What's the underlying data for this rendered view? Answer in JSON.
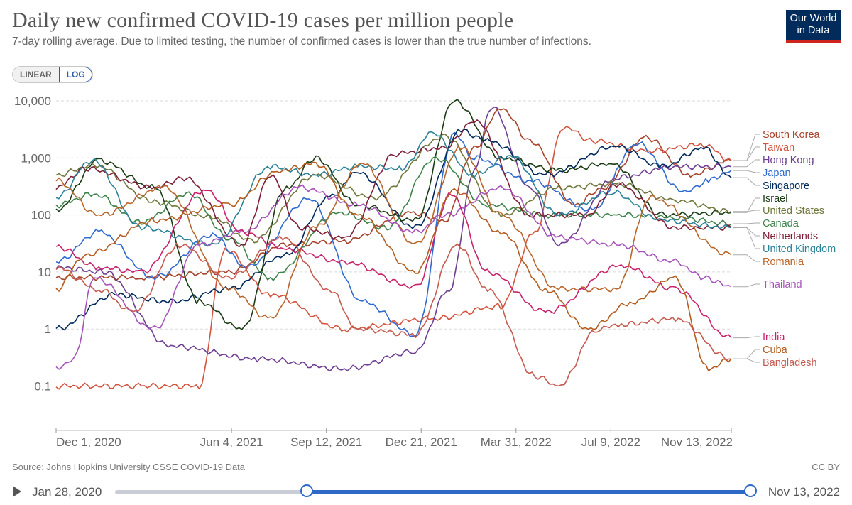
{
  "header": {
    "title": "Daily new confirmed COVID-19 cases per million people",
    "subtitle": "7-day rolling average. Due to limited testing, the number of confirmed cases is lower than the true number of infections.",
    "logo_line1": "Our World",
    "logo_line2": "in Data"
  },
  "scale_toggle": {
    "linear_label": "LINEAR",
    "log_label": "LOG",
    "selected": "LOG"
  },
  "footer": {
    "source": "Source: Johns Hopkins University CSSE COVID-19 Data",
    "license": "CC BY"
  },
  "timeline": {
    "start_label": "Jan 28, 2020",
    "end_label": "Nov 13, 2022",
    "range_start": "Dec 1, 2020",
    "range_end": "Nov 13, 2022"
  },
  "chart_data": {
    "type": "line",
    "title": "Daily new confirmed COVID-19 cases per million people",
    "y_scale": "log",
    "ylim": [
      0.02,
      10000
    ],
    "y_ticks": [
      0.1,
      1,
      10,
      100,
      1000,
      10000
    ],
    "y_tick_labels": [
      "0.1",
      "1",
      "10",
      "100",
      "1,000",
      "10,000"
    ],
    "x_range": [
      "2020-12-01",
      "2022-11-13"
    ],
    "x_ticks": [
      "2020-12-01",
      "2021-06-04",
      "2021-09-12",
      "2021-12-21",
      "2022-03-31",
      "2022-07-09",
      "2022-11-13"
    ],
    "x_tick_labels": [
      "Dec 1, 2020",
      "Jun 4, 2021",
      "Sep 12, 2021",
      "Dec 21, 2021",
      "Mar 31, 2022",
      "Jul 9, 2022",
      "Nov 13, 2022"
    ],
    "grid": true,
    "legend_position": "right",
    "series": [
      {
        "name": "South Korea",
        "color": "#a4422b",
        "dates": [
          "2020-12-01",
          "2021-03-01",
          "2021-06-01",
          "2021-08-01",
          "2021-10-01",
          "2021-12-10",
          "2022-01-15",
          "2022-02-15",
          "2022-03-15",
          "2022-04-15",
          "2022-06-01",
          "2022-07-01",
          "2022-08-15",
          "2022-10-01",
          "2022-11-13"
        ],
        "values": [
          8,
          8,
          10,
          30,
          35,
          110,
          80,
          1500,
          7500,
          2000,
          150,
          300,
          2300,
          500,
          900
        ]
      },
      {
        "name": "Taiwan",
        "color": "#d2543f",
        "dates": [
          "2020-12-01",
          "2021-03-01",
          "2021-05-01",
          "2021-05-28",
          "2021-07-15",
          "2021-10-01",
          "2022-01-01",
          "2022-03-15",
          "2022-04-20",
          "2022-05-20",
          "2022-06-20",
          "2022-08-15",
          "2022-10-15",
          "2022-11-13"
        ],
        "values": [
          0.1,
          0.1,
          0.1,
          25,
          4,
          1,
          1.5,
          2.5,
          50,
          3500,
          2000,
          1300,
          1700,
          900
        ]
      },
      {
        "name": "Hong Kong",
        "color": "#6d3e91",
        "dates": [
          "2020-12-01",
          "2021-01-20",
          "2021-04-01",
          "2021-07-01",
          "2021-10-01",
          "2021-12-15",
          "2022-01-20",
          "2022-02-15",
          "2022-03-05",
          "2022-04-15",
          "2022-05-15",
          "2022-07-15",
          "2022-09-15",
          "2022-11-13"
        ],
        "values": [
          12,
          10,
          0.5,
          0.3,
          0.2,
          0.4,
          5,
          600,
          8000,
          300,
          30,
          450,
          700,
          700
        ]
      },
      {
        "name": "Japan",
        "color": "#2f6ad0",
        "dates": [
          "2020-12-01",
          "2021-01-15",
          "2021-03-15",
          "2021-05-15",
          "2021-06-20",
          "2021-08-25",
          "2021-10-20",
          "2021-12-15",
          "2022-01-25",
          "2022-02-15",
          "2022-04-15",
          "2022-06-20",
          "2022-08-05",
          "2022-09-25",
          "2022-10-20",
          "2022-11-13"
        ],
        "values": [
          15,
          50,
          8,
          45,
          12,
          190,
          3,
          0.8,
          2600,
          1000,
          400,
          120,
          1800,
          250,
          400,
          600
        ]
      },
      {
        "name": "Singapore",
        "color": "#00295b",
        "dates": [
          "2020-12-01",
          "2021-02-01",
          "2021-04-01",
          "2021-06-01",
          "2021-08-01",
          "2021-09-15",
          "2021-10-15",
          "2021-12-15",
          "2022-02-01",
          "2022-03-01",
          "2022-05-01",
          "2022-07-15",
          "2022-09-01",
          "2022-10-15",
          "2022-11-13"
        ],
        "values": [
          1,
          4,
          3,
          5,
          20,
          200,
          550,
          60,
          3000,
          2000,
          500,
          1600,
          700,
          1500,
          450
        ]
      },
      {
        "name": "Israel",
        "color": "#1a3b14",
        "dates": [
          "2020-12-01",
          "2021-01-15",
          "2021-03-15",
          "2021-05-01",
          "2021-06-15",
          "2021-08-01",
          "2021-09-01",
          "2021-10-15",
          "2021-12-15",
          "2022-01-25",
          "2022-03-15",
          "2022-05-15",
          "2022-07-10",
          "2022-09-01",
          "2022-11-13"
        ],
        "values": [
          120,
          900,
          300,
          3,
          1,
          300,
          1000,
          150,
          80,
          10000,
          1000,
          600,
          800,
          100,
          110
        ]
      },
      {
        "name": "United States",
        "color": "#70773c",
        "dates": [
          "2020-12-01",
          "2021-01-10",
          "2021-03-15",
          "2021-05-15",
          "2021-06-25",
          "2021-09-01",
          "2021-11-01",
          "2022-01-15",
          "2022-03-15",
          "2022-05-15",
          "2022-07-15",
          "2022-09-15",
          "2022-11-13"
        ],
        "values": [
          500,
          750,
          170,
          90,
          35,
          500,
          200,
          2400,
          100,
          300,
          350,
          180,
          115
        ]
      },
      {
        "name": "Canada",
        "color": "#3e8149",
        "dates": [
          "2020-12-01",
          "2021-01-10",
          "2021-03-01",
          "2021-04-20",
          "2021-06-01",
          "2021-07-15",
          "2021-09-25",
          "2021-11-15",
          "2022-01-05",
          "2022-03-01",
          "2022-05-01",
          "2022-07-15",
          "2022-09-15",
          "2022-11-13"
        ],
        "values": [
          150,
          230,
          75,
          240,
          40,
          8,
          110,
          60,
          1000,
          150,
          100,
          100,
          90,
          70
        ]
      },
      {
        "name": "Netherlands",
        "color": "#7e1f38",
        "dates": [
          "2020-12-01",
          "2021-01-01",
          "2021-03-15",
          "2021-04-15",
          "2021-06-15",
          "2021-07-15",
          "2021-08-15",
          "2021-10-01",
          "2021-11-25",
          "2022-01-15",
          "2022-02-15",
          "2022-04-15",
          "2022-06-15",
          "2022-07-15",
          "2022-09-15",
          "2022-10-15",
          "2022-11-13"
        ],
        "values": [
          300,
          650,
          300,
          450,
          30,
          500,
          60,
          40,
          1200,
          1500,
          4500,
          100,
          100,
          350,
          60,
          60,
          60
        ]
      },
      {
        "name": "United Kingdom",
        "color": "#2c8299",
        "dates": [
          "2020-12-01",
          "2021-01-08",
          "2021-03-01",
          "2021-05-15",
          "2021-07-15",
          "2021-09-01",
          "2021-10-15",
          "2021-12-01",
          "2022-01-01",
          "2022-02-15",
          "2022-03-25",
          "2022-05-15",
          "2022-07-10",
          "2022-09-01",
          "2022-11-13"
        ],
        "values": [
          200,
          900,
          60,
          30,
          700,
          500,
          700,
          650,
          2700,
          500,
          1100,
          100,
          250,
          80,
          60
        ]
      },
      {
        "name": "Romania",
        "color": "#b8652c",
        "dates": [
          "2020-12-01",
          "2021-01-15",
          "2021-03-25",
          "2021-06-01",
          "2021-07-15",
          "2021-09-01",
          "2021-10-20",
          "2021-12-15",
          "2022-02-01",
          "2022-03-15",
          "2022-05-15",
          "2022-07-15",
          "2022-08-20",
          "2022-11-13"
        ],
        "values": [
          400,
          100,
          300,
          5,
          1.5,
          60,
          800,
          30,
          1500,
          100,
          5,
          5,
          200,
          20
        ]
      },
      {
        "name": "Thailand",
        "color": "#a652ba",
        "dates": [
          "2020-12-01",
          "2020-12-20",
          "2021-01-10",
          "2021-03-15",
          "2021-05-01",
          "2021-06-15",
          "2021-08-15",
          "2021-10-15",
          "2021-12-15",
          "2022-01-15",
          "2022-03-15",
          "2022-05-15",
          "2022-07-15",
          "2022-09-15",
          "2022-10-15",
          "2022-11-13"
        ],
        "values": [
          0.2,
          0.3,
          8,
          1,
          30,
          50,
          300,
          150,
          50,
          100,
          300,
          40,
          30,
          15,
          8,
          5.5
        ]
      },
      {
        "name": "India",
        "color": "#c7226b",
        "dates": [
          "2020-12-01",
          "2021-01-15",
          "2021-03-01",
          "2021-05-08",
          "2021-06-15",
          "2021-08-01",
          "2021-10-01",
          "2021-12-15",
          "2022-01-22",
          "2022-03-01",
          "2022-05-01",
          "2022-07-20",
          "2022-09-15",
          "2022-11-13"
        ],
        "values": [
          28,
          12,
          10,
          280,
          50,
          25,
          15,
          5.5,
          230,
          10,
          2,
          13,
          5,
          0.7
        ]
      },
      {
        "name": "Cuba",
        "color": "#b35c1e",
        "dates": [
          "2020-12-01",
          "2021-01-01",
          "2021-03-15",
          "2021-06-01",
          "2021-07-25",
          "2021-09-01",
          "2021-10-15",
          "2021-12-15",
          "2022-01-25",
          "2022-03-15",
          "2022-05-01",
          "2022-06-15",
          "2022-08-01",
          "2022-09-15",
          "2022-10-20",
          "2022-11-13"
        ],
        "values": [
          5,
          20,
          80,
          150,
          600,
          800,
          100,
          10,
          270,
          50,
          5,
          1,
          3,
          8,
          0.2,
          0.3
        ]
      },
      {
        "name": "Bangladesh",
        "color": "#c55a50",
        "dates": [
          "2020-12-01",
          "2021-01-15",
          "2021-02-20",
          "2021-04-10",
          "2021-06-01",
          "2021-07-28",
          "2021-09-15",
          "2021-10-15",
          "2021-12-15",
          "2022-01-28",
          "2022-03-01",
          "2022-04-20",
          "2022-05-15",
          "2022-06-25",
          "2022-07-20",
          "2022-09-15",
          "2022-11-13"
        ],
        "values": [
          12,
          5,
          2,
          30,
          8,
          40,
          5,
          1,
          0.8,
          30,
          5,
          0.15,
          0.1,
          1,
          1.2,
          1.5,
          0.3
        ]
      }
    ]
  }
}
